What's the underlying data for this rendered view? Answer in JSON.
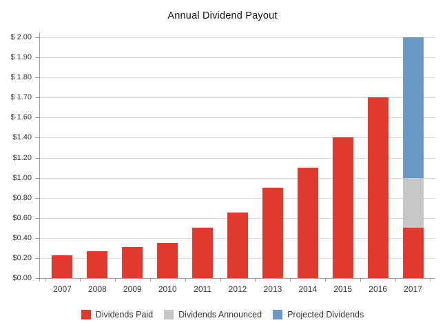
{
  "chart_data": {
    "type": "bar",
    "stacked": true,
    "title": "Annual Dividend Payout",
    "categories": [
      "2007",
      "2008",
      "2009",
      "2010",
      "2011",
      "2012",
      "2013",
      "2014",
      "2015",
      "2016",
      "2017"
    ],
    "series": [
      {
        "name": "Dividends Paid",
        "color": "#df3a2d",
        "values": [
          0.23,
          0.27,
          0.31,
          0.35,
          0.5,
          0.65,
          0.9,
          1.1,
          1.4,
          1.7,
          0.5
        ]
      },
      {
        "name": "Dividends Announced",
        "color": "#c7c7c9",
        "values": [
          0,
          0,
          0,
          0,
          0,
          0,
          0,
          0,
          0,
          0,
          0.5
        ]
      },
      {
        "name": "Projected Dividends",
        "color": "#6b99c5",
        "values": [
          0,
          0,
          0,
          0,
          0,
          0,
          0,
          0,
          0,
          0,
          1.0
        ]
      }
    ],
    "y_axis": {
      "tick_labels": [
        "$ 2.00",
        "$ 1.90",
        "$ 1.80",
        "$ 1.70",
        "$ 1.60",
        "$1.40",
        "$1.20",
        "$1.00",
        "$0.80",
        "$0.60",
        "$0.40",
        "$0.20",
        "$0.00"
      ],
      "tick_values": [
        2.0,
        1.9,
        1.8,
        1.7,
        1.6,
        1.4,
        1.2,
        1.0,
        0.8,
        0.6,
        0.4,
        0.2,
        0.0
      ],
      "evenly_spaced_ticks": true
    },
    "xlabel": "",
    "ylabel": "",
    "grid": true,
    "legend": {
      "position": "bottom",
      "entries": [
        "Dividends Paid",
        "Dividends Announced",
        "Projected Dividends"
      ]
    },
    "colors": {
      "gridline": "#d9d9d9",
      "axis": "#9e9e9e",
      "tick_text": "#333333",
      "title_text": "#141414",
      "background": "#ffffff"
    }
  }
}
